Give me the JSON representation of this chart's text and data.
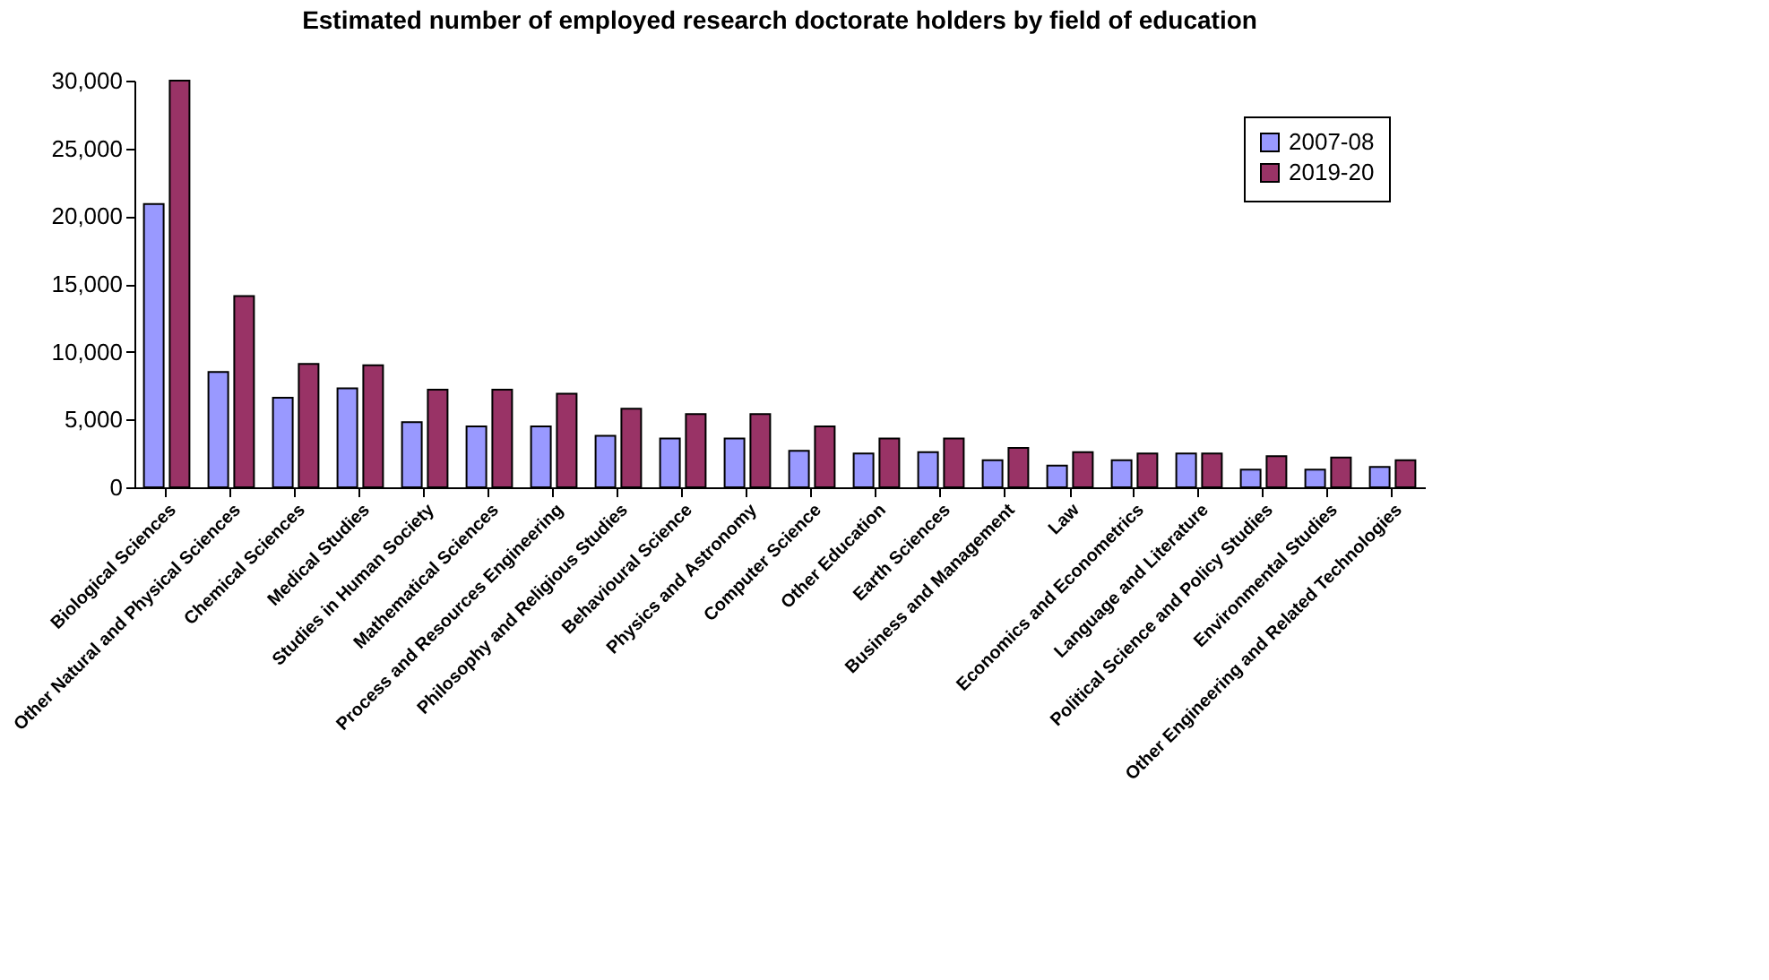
{
  "chart_data": {
    "type": "bar",
    "title": "Estimated number of employed research doctorate holders by field of education",
    "categories": [
      "Biological Sciences",
      "Other Natural and Physical Sciences",
      "Chemical Sciences",
      "Medical Studies",
      "Studies in Human Society",
      "Mathematical Sciences",
      "Process and Resources Engineering",
      "Philosophy and Religious Studies",
      "Behavioural Science",
      "Physics and Astronomy",
      "Computer Science",
      "Other Education",
      "Earth Sciences",
      "Business and Management",
      "Law",
      "Economics and Econometrics",
      "Language and Literature",
      "Political Science and Policy Studies",
      "Environmental Studies",
      "Other Engineering and Related Technologies"
    ],
    "series": [
      {
        "name": "2007-08",
        "color": "#9999ff",
        "values": [
          20900,
          8500,
          6600,
          7300,
          4800,
          4500,
          4500,
          3800,
          3600,
          3600,
          2700,
          2500,
          2600,
          2000,
          1600,
          2000,
          2500,
          1300,
          1300,
          1500
        ]
      },
      {
        "name": "2019-20",
        "color": "#993366",
        "values": [
          30000,
          14100,
          9100,
          9000,
          7200,
          7200,
          6900,
          5800,
          5400,
          5400,
          4500,
          3600,
          3600,
          2900,
          2600,
          2500,
          2500,
          2300,
          2200,
          2000
        ]
      }
    ],
    "ylim": [
      0,
      30000
    ],
    "yticks": [
      0,
      {
        "value": 5000,
        "label": "5,000"
      },
      {
        "value": 10000,
        "label": "10,000"
      },
      {
        "value": 15000,
        "label": "15,000"
      },
      {
        "value": 20000,
        "label": "20,000"
      },
      {
        "value": 25000,
        "label": "25,000"
      },
      {
        "value": 30000,
        "label": "30,000"
      }
    ],
    "grid": false,
    "legend": "top right"
  }
}
